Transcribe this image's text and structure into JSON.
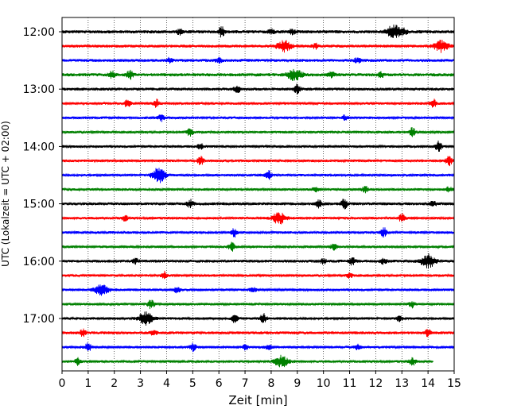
{
  "chart_data": {
    "type": "line",
    "title": "",
    "xlabel": "Zeit  [min]",
    "ylabel": "UTC (Lokalzeit = UTC + 02:00)",
    "xlim": [
      0,
      15
    ],
    "x_ticks": [
      0,
      1,
      2,
      3,
      4,
      5,
      6,
      7,
      8,
      9,
      10,
      11,
      12,
      13,
      14,
      15
    ],
    "x_gridlines": "dotted vertical at each minute",
    "start_time": "12:00",
    "trace_minutes": 15,
    "y_tick_labels": [
      "12:00",
      "13:00",
      "14:00",
      "15:00",
      "16:00",
      "17:00"
    ],
    "color_cycle": [
      "#000000",
      "#ff0000",
      "#0000ff",
      "#008000"
    ],
    "traces": [
      {
        "color": "#000000",
        "amp": 2.0,
        "end": 15,
        "events": [
          [
            4.5,
            3
          ],
          [
            6.1,
            6
          ],
          [
            8.0,
            3
          ],
          [
            8.8,
            3
          ],
          [
            12.7,
            8
          ],
          [
            13.1,
            3
          ]
        ]
      },
      {
        "color": "#ff0000",
        "amp": 1.8,
        "end": 15,
        "events": [
          [
            8.5,
            7
          ],
          [
            9.7,
            3
          ],
          [
            14.5,
            7
          ]
        ]
      },
      {
        "color": "#0000ff",
        "amp": 1.8,
        "end": 15,
        "events": [
          [
            4.1,
            3
          ],
          [
            6.0,
            3
          ],
          [
            11.3,
            3
          ]
        ]
      },
      {
        "color": "#008000",
        "amp": 2.0,
        "end": 15,
        "events": [
          [
            1.9,
            4
          ],
          [
            2.6,
            5
          ],
          [
            8.9,
            7
          ],
          [
            10.3,
            4
          ],
          [
            12.2,
            3
          ]
        ]
      },
      {
        "color": "#000000",
        "amp": 1.8,
        "end": 15,
        "events": [
          [
            6.7,
            5
          ],
          [
            9.0,
            6
          ]
        ]
      },
      {
        "color": "#ff0000",
        "amp": 1.6,
        "end": 15,
        "events": [
          [
            2.5,
            5
          ],
          [
            3.6,
            5
          ],
          [
            14.2,
            5
          ]
        ]
      },
      {
        "color": "#0000ff",
        "amp": 1.6,
        "end": 15,
        "events": [
          [
            3.8,
            4
          ],
          [
            10.8,
            3
          ]
        ]
      },
      {
        "color": "#008000",
        "amp": 1.6,
        "end": 15,
        "events": [
          [
            4.9,
            5
          ],
          [
            13.4,
            5
          ]
        ]
      },
      {
        "color": "#000000",
        "amp": 1.6,
        "end": 15,
        "events": [
          [
            5.3,
            3
          ],
          [
            14.4,
            6
          ]
        ]
      },
      {
        "color": "#ff0000",
        "amp": 1.6,
        "end": 15,
        "events": [
          [
            5.3,
            5
          ],
          [
            14.8,
            6
          ]
        ]
      },
      {
        "color": "#0000ff",
        "amp": 1.6,
        "end": 15,
        "events": [
          [
            3.7,
            9
          ],
          [
            7.9,
            5
          ]
        ]
      },
      {
        "color": "#008000",
        "amp": 1.6,
        "end": 15,
        "events": [
          [
            9.7,
            3
          ],
          [
            11.6,
            4
          ],
          [
            14.8,
            3
          ]
        ]
      },
      {
        "color": "#000000",
        "amp": 1.8,
        "end": 15,
        "events": [
          [
            4.9,
            5
          ],
          [
            9.8,
            5
          ],
          [
            10.8,
            6
          ],
          [
            14.2,
            3
          ]
        ]
      },
      {
        "color": "#ff0000",
        "amp": 1.6,
        "end": 15,
        "events": [
          [
            2.4,
            3
          ],
          [
            8.3,
            7
          ],
          [
            13.0,
            5
          ]
        ]
      },
      {
        "color": "#0000ff",
        "amp": 1.6,
        "end": 15,
        "events": [
          [
            6.6,
            5
          ],
          [
            12.3,
            6
          ]
        ]
      },
      {
        "color": "#008000",
        "amp": 1.6,
        "end": 15,
        "events": [
          [
            6.5,
            6
          ],
          [
            10.4,
            4
          ]
        ]
      },
      {
        "color": "#000000",
        "amp": 1.8,
        "end": 15,
        "events": [
          [
            2.8,
            3
          ],
          [
            10.0,
            3
          ],
          [
            11.1,
            5
          ],
          [
            12.3,
            3
          ],
          [
            14.0,
            8
          ]
        ]
      },
      {
        "color": "#ff0000",
        "amp": 1.6,
        "end": 15,
        "events": [
          [
            3.9,
            5
          ],
          [
            11.0,
            3
          ]
        ]
      },
      {
        "color": "#0000ff",
        "amp": 1.6,
        "end": 15,
        "events": [
          [
            1.5,
            7
          ],
          [
            4.4,
            3
          ],
          [
            7.3,
            3
          ]
        ]
      },
      {
        "color": "#008000",
        "amp": 1.6,
        "end": 15,
        "events": [
          [
            3.4,
            6
          ],
          [
            13.4,
            4
          ]
        ]
      },
      {
        "color": "#000000",
        "amp": 1.6,
        "end": 15,
        "events": [
          [
            3.2,
            8
          ],
          [
            6.6,
            5
          ],
          [
            7.7,
            6
          ],
          [
            12.9,
            3
          ]
        ]
      },
      {
        "color": "#ff0000",
        "amp": 1.8,
        "end": 15,
        "events": [
          [
            0.8,
            4
          ],
          [
            3.5,
            3
          ],
          [
            14.0,
            5
          ]
        ]
      },
      {
        "color": "#0000ff",
        "amp": 1.6,
        "end": 15,
        "events": [
          [
            1.0,
            5
          ],
          [
            5.0,
            5
          ],
          [
            7.0,
            3
          ],
          [
            7.9,
            3
          ],
          [
            11.3,
            3
          ]
        ]
      },
      {
        "color": "#008000",
        "amp": 1.6,
        "end": 14.2,
        "events": [
          [
            0.6,
            4
          ],
          [
            8.4,
            7
          ],
          [
            13.4,
            5
          ]
        ]
      }
    ]
  }
}
